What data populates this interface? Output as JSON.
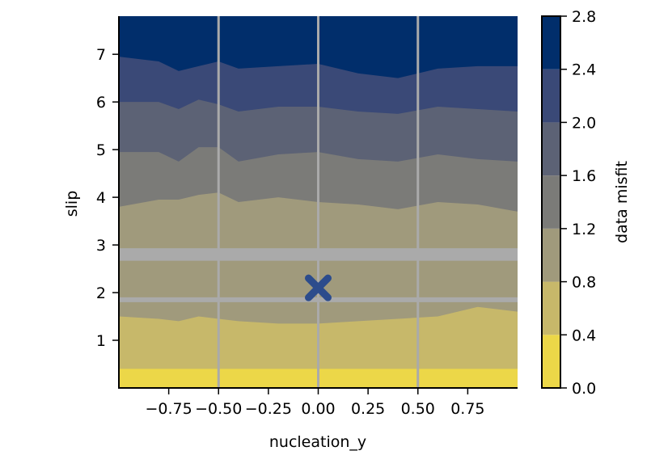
{
  "chart_data": {
    "type": "contour",
    "xlabel": "nucleation_y",
    "ylabel": "slip",
    "colorbar_label": "data misfit",
    "xlim": [
      -1.0,
      1.0
    ],
    "ylim": [
      0.0,
      7.8
    ],
    "x_ticks": [
      -0.75,
      -0.5,
      -0.25,
      0.0,
      0.25,
      0.5,
      0.75
    ],
    "x_tick_labels": [
      "−0.75",
      "−0.50",
      "−0.25",
      "0.00",
      "0.25",
      "0.50",
      "0.75"
    ],
    "y_ticks": [
      1,
      2,
      3,
      4,
      5,
      6,
      7
    ],
    "y_tick_labels": [
      "1",
      "2",
      "3",
      "4",
      "5",
      "6",
      "7"
    ],
    "colorbar_ticks": [
      0.0,
      0.4,
      0.8,
      1.2,
      1.6,
      2.0,
      2.4,
      2.8
    ],
    "colorbar_tick_labels": [
      "0.0",
      "0.4",
      "0.8",
      "1.2",
      "1.6",
      "2.0",
      "2.4",
      "2.8"
    ],
    "levels": [
      0.0,
      0.4,
      0.8,
      1.2,
      1.6,
      2.0,
      2.4,
      2.8
    ],
    "level_colors": [
      "#ecd748",
      "#c7b86a",
      "#a09a7c",
      "#7b7b78",
      "#5c6275",
      "#3a4977",
      "#012e6b"
    ],
    "contour_x": [
      -1.0,
      -0.8,
      -0.7,
      -0.6,
      -0.5,
      -0.4,
      -0.2,
      0.0,
      0.2,
      0.4,
      0.6,
      0.8,
      1.0
    ],
    "contour_boundaries": [
      [
        0.4,
        0.4,
        0.4,
        0.4,
        0.4,
        0.4,
        0.4,
        0.4,
        0.4,
        0.4,
        0.4,
        0.4,
        0.4
      ],
      [
        1.5,
        1.45,
        1.4,
        1.5,
        1.45,
        1.4,
        1.35,
        1.35,
        1.4,
        1.45,
        1.5,
        1.7,
        1.6
      ],
      [
        3.8,
        3.95,
        3.95,
        4.05,
        4.1,
        3.9,
        4.0,
        3.9,
        3.85,
        3.75,
        3.9,
        3.85,
        3.7
      ],
      [
        4.95,
        4.95,
        4.75,
        5.05,
        5.05,
        4.75,
        4.9,
        4.95,
        4.8,
        4.75,
        4.9,
        4.8,
        4.75
      ],
      [
        6.0,
        6.0,
        5.85,
        6.05,
        5.95,
        5.8,
        5.9,
        5.9,
        5.8,
        5.75,
        5.9,
        5.85,
        5.8
      ],
      [
        6.95,
        6.85,
        6.65,
        6.75,
        6.85,
        6.7,
        6.75,
        6.8,
        6.6,
        6.5,
        6.7,
        6.75,
        6.75
      ],
      [
        7.8,
        7.75,
        7.6,
        7.8,
        7.75,
        7.65,
        7.6,
        7.5,
        7.45,
        7.35,
        7.6,
        7.75,
        7.55
      ]
    ],
    "grid": true,
    "reference_lines_x": [
      -0.5,
      0.0,
      0.5
    ],
    "reference_lines_y": [
      1.85,
      2.72,
      2.88
    ],
    "marker": {
      "x": 0.0,
      "y": 2.1,
      "symbol": "X",
      "color": "#2c4c8c"
    },
    "background_color": "#ffffff",
    "grid_color": "#aaaaaa"
  }
}
